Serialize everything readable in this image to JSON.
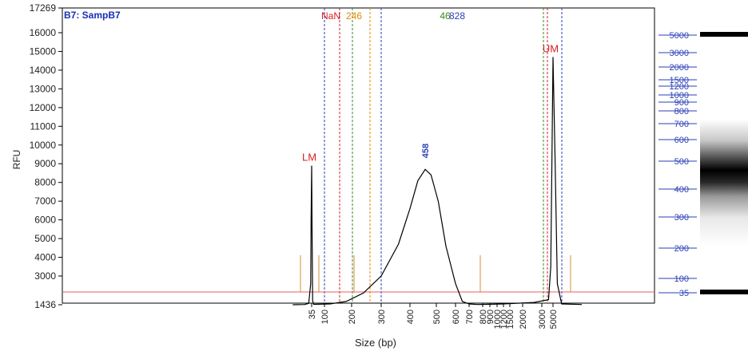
{
  "chart_data": {
    "type": "line",
    "sample_label": "B7: SampB7",
    "xlabel": "Size (bp)",
    "ylabel": "RFU",
    "y_ticks": [
      "17269",
      "16000",
      "15000",
      "14000",
      "13000",
      "12000",
      "11000",
      "10000",
      "9000",
      "8000",
      "7000",
      "6000",
      "5000",
      "4000",
      "3000",
      "1436"
    ],
    "x_ticks": [
      "35",
      "100",
      "200",
      "300",
      "400",
      "500",
      "600",
      "700",
      "800",
      "900",
      "1000",
      "1200",
      "1500",
      "2000",
      "3000",
      "5000"
    ],
    "ylim": [
      1436,
      17269
    ],
    "markers": [
      {
        "label": "LM",
        "size_bp": 35,
        "rfu": 8900,
        "color": "#d62020"
      },
      {
        "label": "UM",
        "size_bp": 5000,
        "rfu": 14700,
        "color": "#d62020"
      }
    ],
    "peak": {
      "label": "458",
      "size_bp": 458,
      "rfu": 8700,
      "color": "#2b3fb5"
    },
    "region_labels": [
      {
        "text": "NaN",
        "color": "#d62020"
      },
      {
        "text": "246",
        "color": "#e08a00"
      },
      {
        "text": "46",
        "color": "#3a8a1a"
      },
      {
        "text": "828",
        "color": "#2b3fb5"
      }
    ],
    "series": [
      {
        "values": [
          [
            -60,
            1480
          ],
          [
            0,
            1490
          ],
          [
            20,
            1550
          ],
          [
            30,
            2600
          ],
          [
            32,
            6000
          ],
          [
            35,
            8900
          ],
          [
            37,
            5500
          ],
          [
            40,
            1700
          ],
          [
            45,
            1500
          ],
          [
            120,
            1520
          ],
          [
            180,
            1650
          ],
          [
            240,
            2100
          ],
          [
            300,
            3000
          ],
          [
            360,
            4700
          ],
          [
            400,
            6600
          ],
          [
            430,
            8100
          ],
          [
            458,
            8700
          ],
          [
            480,
            8400
          ],
          [
            510,
            7000
          ],
          [
            550,
            4600
          ],
          [
            600,
            2600
          ],
          [
            650,
            1650
          ],
          [
            700,
            1520
          ],
          [
            760,
            1490
          ],
          [
            850,
            1500
          ],
          [
            1200,
            1520
          ],
          [
            1800,
            1560
          ],
          [
            2600,
            1600
          ],
          [
            4200,
            1750
          ],
          [
            4600,
            3500
          ],
          [
            4800,
            9000
          ],
          [
            5000,
            14700
          ],
          [
            5150,
            9000
          ],
          [
            5300,
            2600
          ],
          [
            5600,
            1520
          ],
          [
            7000,
            1490
          ]
        ]
      }
    ],
    "ladder_sizes": [
      "5000",
      "3000",
      "2000",
      "1500",
      "1200",
      "1000",
      "900",
      "800",
      "700",
      "600",
      "500",
      "400",
      "300",
      "200",
      "100",
      "35"
    ]
  }
}
